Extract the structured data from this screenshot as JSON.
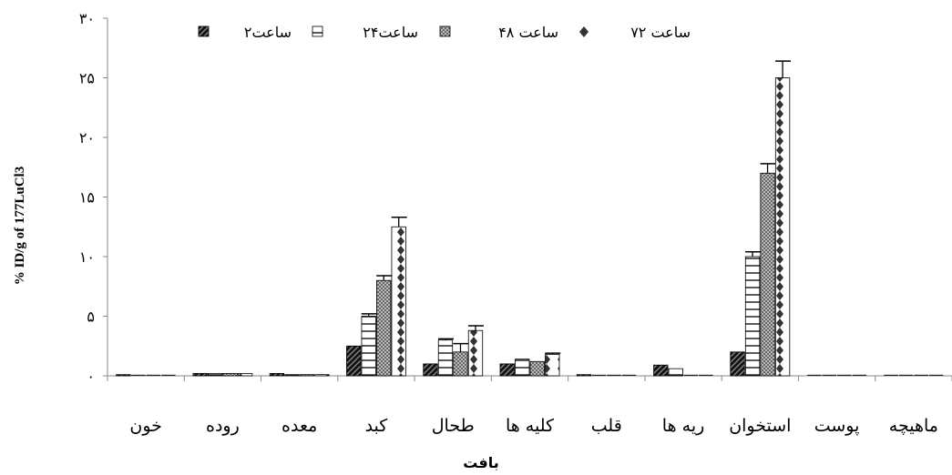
{
  "chart_data": {
    "type": "bar",
    "title": "",
    "xlabel": "بافت",
    "ylabel": "% ID/g of 177LuCl3",
    "ylim": [
      0,
      30
    ],
    "y_tick_values": [
      0,
      5,
      10,
      15,
      20,
      25,
      30
    ],
    "y_tick_labels": [
      "۰",
      "۵",
      "۱۰",
      "۱۵",
      "۲۰",
      "۲۵",
      "۳۰"
    ],
    "grid": false,
    "legend_position": "top",
    "categories": [
      "خون",
      "روده",
      "معده",
      "کبد",
      "طحال",
      "کلیه ها",
      "قلب",
      "ریه ها",
      "استخوان",
      "پوست",
      "ماهیچه"
    ],
    "series": [
      {
        "name": "ساعت۲",
        "pattern": "diagonal",
        "values": [
          0.1,
          0.2,
          0.2,
          2.5,
          1.0,
          1.0,
          0.1,
          0.9,
          2.0,
          0.0,
          0.0
        ],
        "errors": [
          0.0,
          0.0,
          0.0,
          0.0,
          0.0,
          0.0,
          0.0,
          0.0,
          0.0,
          0.0,
          0.0
        ]
      },
      {
        "name": "ساعت۲۴",
        "pattern": "horizontal",
        "values": [
          0.0,
          0.2,
          0.1,
          5.0,
          3.0,
          1.4,
          0.0,
          0.6,
          10.0,
          0.0,
          0.0
        ],
        "errors": [
          0.0,
          0.0,
          0.0,
          0.2,
          0.1,
          0.0,
          0.0,
          0.0,
          0.4,
          0.0,
          0.0
        ]
      },
      {
        "name": "ساعت ۴۸",
        "pattern": "checker",
        "values": [
          0.0,
          0.2,
          0.1,
          8.0,
          2.0,
          1.2,
          0.0,
          0.0,
          17.0,
          0.0,
          0.0
        ],
        "errors": [
          0.0,
          0.0,
          0.0,
          0.4,
          0.7,
          0.0,
          0.0,
          0.0,
          0.8,
          0.0,
          0.0
        ]
      },
      {
        "name": "ساعت ۷۲",
        "pattern": "diamond",
        "values": [
          0.0,
          0.2,
          0.1,
          12.5,
          3.8,
          1.8,
          0.0,
          0.0,
          25.0,
          0.0,
          0.0
        ],
        "errors": [
          0.0,
          0.0,
          0.0,
          0.8,
          0.4,
          0.1,
          0.0,
          0.0,
          1.4,
          0.0,
          0.0
        ]
      }
    ]
  }
}
